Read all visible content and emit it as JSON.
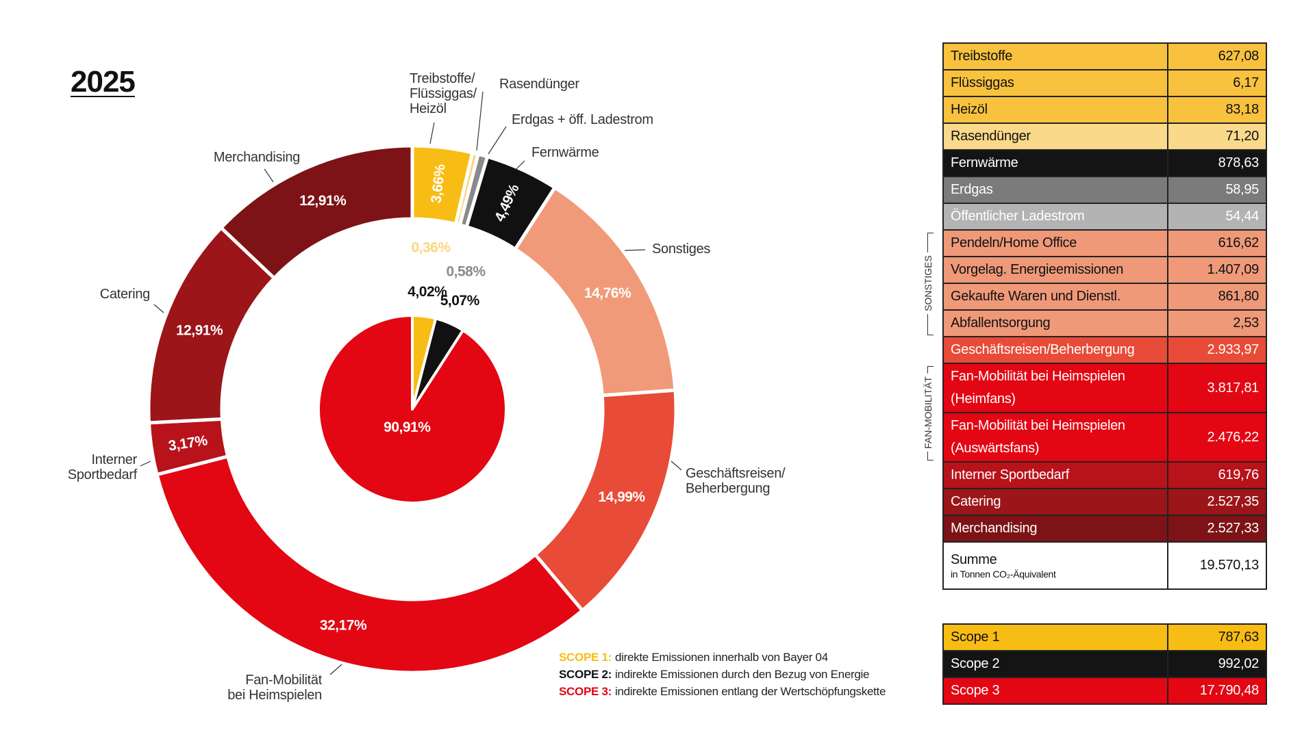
{
  "title": "2025",
  "chart_data": [
    {
      "type": "donut",
      "categories": [
        "Treibstoffe/\nFlüssiggas/\nHeizöl",
        "Rasendünger",
        "Erdgas + öff. Ladestrom",
        "Fernwärme",
        "Sonstiges",
        "Geschäftsreisen/\nBeherbergung",
        "Fan-Mobilität\nbei Heimspielen",
        "Interner\nSportbedarf",
        "Catering",
        "Merchandising"
      ],
      "values": [
        3.66,
        0.36,
        0.58,
        4.49,
        14.76,
        14.99,
        32.17,
        3.17,
        12.91,
        12.91
      ],
      "value_labels": [
        "3,66%",
        "0,36%",
        "0,58%",
        "4,49%",
        "14,76%",
        "14,99%",
        "32,17%",
        "3,17%",
        "12,91%",
        "12,91%"
      ],
      "colors": [
        "#f8bd14",
        "#fbd67e",
        "#8a8a8a",
        "#111111",
        "#f19a7a",
        "#e84b37",
        "#e30613",
        "#b8121a",
        "#9b1519",
        "#7d1316"
      ]
    },
    {
      "type": "pie",
      "values": [
        4.02,
        5.07,
        90.91
      ],
      "value_labels": [
        "4,02%",
        "5,07%",
        "90,91%"
      ],
      "colors": [
        "#f8bd14",
        "#111111",
        "#e30613"
      ]
    }
  ],
  "legend": [
    {
      "scope": "SCOPE 1:",
      "text": "direkte Emissionen innerhalb von Bayer 04",
      "color": "#f8bd14"
    },
    {
      "scope": "SCOPE 2:",
      "text": "indirekte Emissionen durch den Bezug von Energie",
      "color": "#111111"
    },
    {
      "scope": "SCOPE 3:",
      "text": "indirekte Emissionen entlang der Wertschöpfungskette",
      "color": "#e30613"
    }
  ],
  "table": {
    "sections": [
      {
        "rows": [
          {
            "label": "Treibstoffe",
            "value": "627,08",
            "color": "#f8c23e",
            "text_color": "#111111"
          },
          {
            "label": "Flüssiggas",
            "value": "6,17",
            "color": "#f8c23e",
            "text_color": "#111111"
          },
          {
            "label": "Heizöl",
            "value": "83,18",
            "color": "#f8c23e",
            "text_color": "#111111"
          },
          {
            "label": "Rasendünger",
            "value": "71,20",
            "color": "#fbd98a",
            "text_color": "#111111"
          },
          {
            "label": "Fernwärme",
            "value": "878,63",
            "color": "#141414",
            "text_color": "#ffffff"
          },
          {
            "label": "Erdgas",
            "value": "58,95",
            "color": "#7b7b7b",
            "text_color": "#ffffff"
          },
          {
            "label": "Öffentlicher Ladestrom",
            "value": "54,44",
            "color": "#b3b3b3",
            "text_color": "#ffffff"
          }
        ]
      },
      {
        "label": "SONSTIGES",
        "rows": [
          {
            "label": "Pendeln/Home Office",
            "value": "616,62",
            "color": "#ef9979",
            "text_color": "#111111"
          },
          {
            "label": "Vorgelag. Energieemissionen",
            "value": "1.407,09",
            "color": "#ef9979",
            "text_color": "#111111"
          },
          {
            "label": "Gekaufte Waren und Dienstl.",
            "value": "861,80",
            "color": "#ef9979",
            "text_color": "#111111"
          },
          {
            "label": "Abfallentsorgung",
            "value": "2,53",
            "color": "#ef9979",
            "text_color": "#111111"
          }
        ]
      },
      {
        "rows": [
          {
            "label": "Geschäftsreisen/Beherbergung",
            "value": "2.933,97",
            "color": "#e84b37",
            "text_color": "#ffffff"
          }
        ]
      },
      {
        "label": "FAN-MOBILITÄT",
        "rows": [
          {
            "label": "Fan-Mobilität bei Heimspielen (Heimfans)",
            "value": "3.817,81",
            "color": "#e30613",
            "text_color": "#ffffff"
          },
          {
            "label": "Fan-Mobilität bei Heimspielen (Auswärtsfans)",
            "value": "2.476,22",
            "color": "#e30613",
            "text_color": "#ffffff"
          }
        ]
      },
      {
        "rows": [
          {
            "label": "Interner Sportbedarf",
            "value": "619,76",
            "color": "#b8121a",
            "text_color": "#ffffff"
          },
          {
            "label": "Catering",
            "value": "2.527,35",
            "color": "#9b1519",
            "text_color": "#ffffff"
          },
          {
            "label": "Merchandising",
            "value": "2.527,33",
            "color": "#7d1316",
            "text_color": "#ffffff"
          }
        ]
      }
    ],
    "total": {
      "label": "Summe",
      "unit": "in Tonnen CO₂-Äquivalent",
      "value": "19.570,13"
    }
  },
  "scope_table": {
    "rows": [
      {
        "label": "Scope 1",
        "value": "787,63",
        "color": "#f8bd14",
        "text_color": "#111111"
      },
      {
        "label": "Scope 2",
        "value": "992,02",
        "color": "#141414",
        "text_color": "#ffffff"
      },
      {
        "label": "Scope 3",
        "value": "17.790,48",
        "color": "#e30613",
        "text_color": "#ffffff"
      }
    ]
  }
}
